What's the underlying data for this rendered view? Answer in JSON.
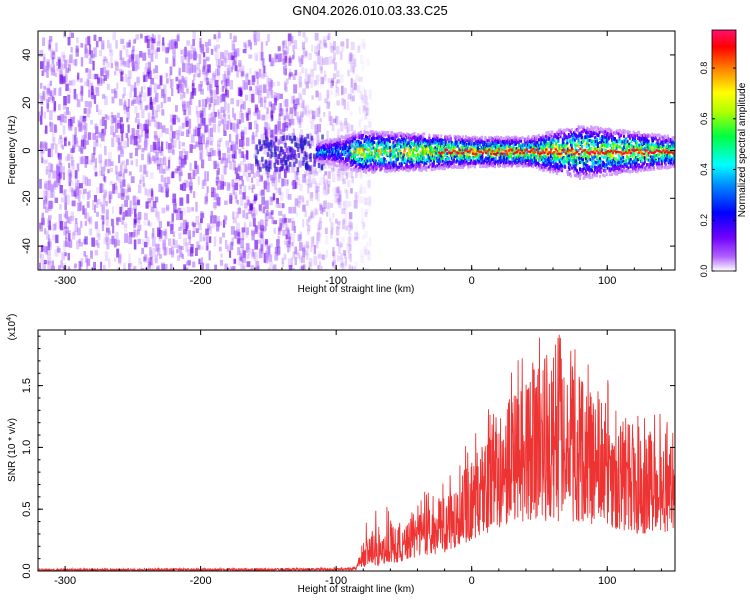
{
  "title": "GN04.2026.010.03.33.C25",
  "colors": {
    "trace": "#ee3333",
    "axis": "#000000",
    "background": "#ffffff"
  },
  "chart_data": [
    {
      "type": "heatmap",
      "name": "spectrogram",
      "xlabel": "Height of straight line (km)",
      "ylabel": "Frequency (Hz)",
      "xlim": [
        -320,
        150
      ],
      "ylim": [
        -50,
        50
      ],
      "xticks": [
        -300,
        -200,
        -100,
        0,
        100
      ],
      "yticks": [
        -40,
        -20,
        0,
        20,
        40
      ],
      "noise_region_x": [
        -320,
        -82
      ],
      "signal_band": {
        "x_start": -115,
        "x_end": 150,
        "center_freq": 0,
        "half_width_hz": [
          [
            -115,
            3
          ],
          [
            -80,
            7
          ],
          [
            -30,
            6
          ],
          [
            0,
            5
          ],
          [
            40,
            5
          ],
          [
            80,
            9
          ],
          [
            150,
            5
          ]
        ],
        "peak_amplitude": 0.9
      },
      "colorbar": {
        "label": "Normalized spectral amplitude",
        "range": [
          0.0,
          0.95
        ],
        "ticks": [
          "0.0",
          "0.2",
          "0.4",
          "0.6",
          "0.8"
        ],
        "colormap": [
          "#ffffff",
          "#8a00ff",
          "#0000ff",
          "#00ffff",
          "#00ff00",
          "#ffff00",
          "#ff8000",
          "#ff0000",
          "#ff1070"
        ]
      }
    },
    {
      "type": "line",
      "name": "snr",
      "xlabel": "Height of straight line (km)",
      "ylabel": "SNR (10 * v/v)",
      "scale_note": "(x10",
      "scale_exp": "4",
      "scale_close": ")",
      "xlim": [
        -320,
        150
      ],
      "ylim": [
        0,
        1.95
      ],
      "xticks": [
        -300,
        -200,
        -100,
        0,
        100
      ],
      "yticks": [
        "0.0",
        "0.5",
        "1.0",
        "1.5"
      ],
      "envelope": {
        "x": [
          -320,
          -100,
          -85,
          -82,
          -60,
          -40,
          -20,
          0,
          20,
          40,
          60,
          80,
          100,
          120,
          150
        ],
        "low": [
          0.0,
          0.0,
          0.01,
          0.03,
          0.06,
          0.1,
          0.15,
          0.25,
          0.35,
          0.4,
          0.4,
          0.4,
          0.35,
          0.3,
          0.3
        ],
        "high": [
          0.03,
          0.04,
          0.05,
          0.25,
          0.35,
          0.45,
          0.6,
          0.9,
          1.3,
          1.6,
          1.8,
          1.6,
          1.4,
          1.2,
          1.0
        ]
      }
    }
  ]
}
